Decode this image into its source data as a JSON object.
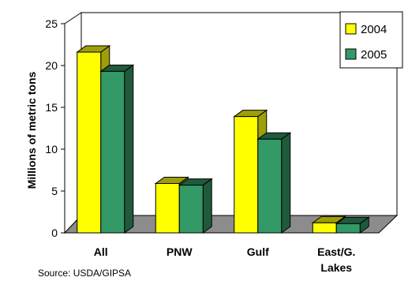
{
  "chart_data": {
    "type": "bar",
    "categories": [
      "All",
      "PNW",
      "Gulf",
      "East/G. Lakes"
    ],
    "series": [
      {
        "name": "2004",
        "values": [
          21.6,
          5.9,
          13.9,
          1.2
        ]
      },
      {
        "name": "2005",
        "values": [
          19.3,
          5.7,
          11.2,
          1.1
        ]
      }
    ],
    "ylabel": "Millions of metric tons",
    "ylim": [
      0,
      25
    ],
    "yticks": [
      "0",
      "5",
      "10",
      "15",
      "20",
      "25"
    ],
    "grid": false,
    "legend": "top-right",
    "colors": {
      "2004_front": "#ffff00",
      "2004_side": "#9e9e0a",
      "2005_front": "#339966",
      "2005_side": "#1f5a3c",
      "floor": "#8c8c8c",
      "wall": "#ffffff"
    }
  },
  "footer": {
    "source": "Source: USDA/GIPSA"
  }
}
